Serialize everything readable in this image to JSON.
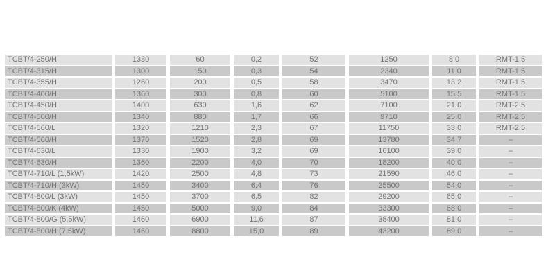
{
  "page": {
    "background": "#ffffff"
  },
  "table": {
    "description_colors": {
      "row_light": "#e2e2e2",
      "row_dark": "#c9c9c9",
      "text": "#757575"
    },
    "rows": [
      [
        "TCBT/4-250/H",
        "1330",
        "60",
        "0,2",
        "52",
        "1250",
        "8,0",
        "RMT-1,5"
      ],
      [
        "TCBT/4-315/H",
        "1300",
        "150",
        "0,3",
        "54",
        "2340",
        "11,0",
        "RMT-1,5"
      ],
      [
        "TCBT/4-355/H",
        "1260",
        "200",
        "0,5",
        "58",
        "3470",
        "13,2",
        "RMT-1,5"
      ],
      [
        "TCBT/4-400/H",
        "1360",
        "300",
        "0,8",
        "60",
        "5100",
        "15,5",
        "RMT-1,5"
      ],
      [
        "TCBT/4-450/H",
        "1400",
        "630",
        "1,6",
        "62",
        "7100",
        "21,0",
        "RMT-2,5"
      ],
      [
        "TCBT/4-500/H",
        "1340",
        "880",
        "1,7",
        "66",
        "9710",
        "25,0",
        "RMT-2,5"
      ],
      [
        "TCBT/4-560/L",
        "1320",
        "1210",
        "2,3",
        "67",
        "11750",
        "33,0",
        "RMT-2,5"
      ],
      [
        "TCBT/4-560/H",
        "1370",
        "1520",
        "2,8",
        "69",
        "13780",
        "34,7",
        "–"
      ],
      [
        "TCBT/4-630/L",
        "1330",
        "1900",
        "3,2",
        "69",
        "16100",
        "39,0",
        "–"
      ],
      [
        "TCBT/4-630/H",
        "1360",
        "2200",
        "4,0",
        "70",
        "18200",
        "40,0",
        "–"
      ],
      [
        "TCBT/4-710/L (1,5kW)",
        "1420",
        "2500",
        "4,8",
        "73",
        "21590",
        "46,0",
        "–"
      ],
      [
        "TCBT/4-710/H (3kW)",
        "1450",
        "3400",
        "6,4",
        "76",
        "25500",
        "54,0",
        "–"
      ],
      [
        "TCBT/4-800/L (3kW)",
        "1450",
        "3700",
        "6,5",
        "82",
        "29200",
        "65,0",
        "–"
      ],
      [
        "TCBT/4-800/K (4kW)",
        "1450",
        "5000",
        "9,0",
        "84",
        "33300",
        "68,0",
        "–"
      ],
      [
        "TCBT/4-800/G (5,5kW)",
        "1460",
        "6900",
        "11,6",
        "87",
        "38400",
        "81,0",
        "–"
      ],
      [
        "TCBT/4-800/H (7,5kW)",
        "1460",
        "8800",
        "15,0",
        "89",
        "43200",
        "89,0",
        "–"
      ]
    ]
  }
}
